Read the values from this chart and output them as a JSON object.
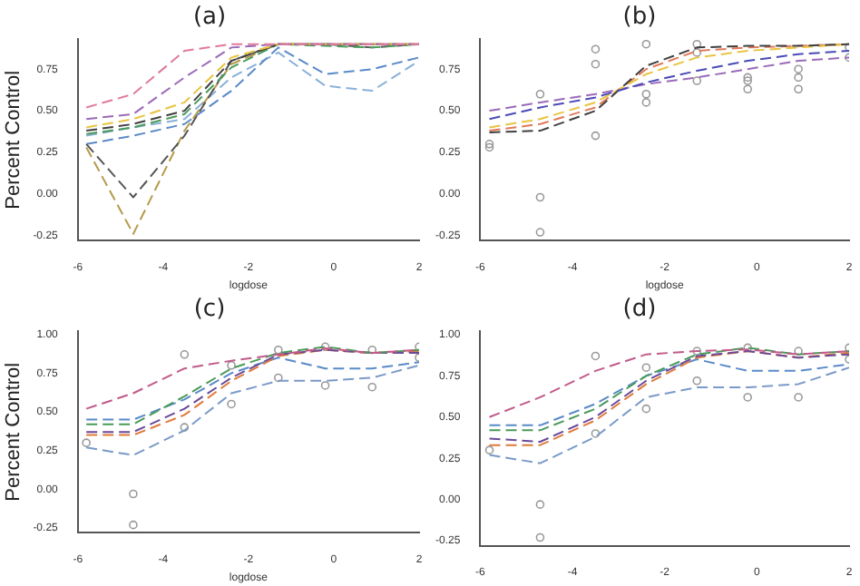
{
  "chart_data": [
    {
      "type": "line",
      "title": "(a)",
      "xlabel": "logdose",
      "ylabel": "Percent Control",
      "x": [
        -5.8,
        -4.7,
        -3.5,
        -2.4,
        -1.3,
        -0.2,
        0.9,
        2.0
      ],
      "xlim": [
        -6,
        2
      ],
      "xticks": [
        -6,
        -4,
        -2,
        0,
        2
      ],
      "ylim": [
        -0.28,
        0.93
      ],
      "yticks": [
        {
          "value": -0.25,
          "label": "-0.25"
        },
        {
          "value": 0,
          "label": "0.00"
        },
        {
          "value": 0.25,
          "label": "0.25"
        },
        {
          "value": 0.5,
          "label": "0.50"
        },
        {
          "value": 0.75,
          "label": "0.75"
        }
      ],
      "grid": false,
      "legend": false,
      "marker": "none",
      "line_style": "dashed",
      "series": [
        {
          "color": "#e07a9a",
          "values": [
            0.52,
            0.6,
            0.86,
            0.9,
            0.9,
            0.9,
            0.9,
            0.9
          ]
        },
        {
          "color": "#9a6ab8",
          "values": [
            0.45,
            0.48,
            0.7,
            0.88,
            0.9,
            0.9,
            0.9,
            0.9
          ]
        },
        {
          "color": "#e8c440",
          "values": [
            0.4,
            0.45,
            0.55,
            0.82,
            0.9,
            0.9,
            0.9,
            0.9
          ]
        },
        {
          "color": "#404040",
          "values": [
            0.38,
            0.42,
            0.5,
            0.8,
            0.9,
            0.9,
            0.9,
            0.9
          ]
        },
        {
          "color": "#4a9a5a",
          "values": [
            0.36,
            0.4,
            0.48,
            0.76,
            0.9,
            0.89,
            0.88,
            0.9
          ]
        },
        {
          "color": "#555555",
          "values": [
            0.3,
            -0.02,
            0.35,
            0.8,
            0.9,
            0.9,
            0.88,
            0.9
          ]
        },
        {
          "color": "#b59a4a",
          "values": [
            0.28,
            -0.24,
            0.38,
            0.78,
            0.9,
            0.9,
            0.9,
            0.9
          ]
        },
        {
          "color": "#5a8ac8",
          "values": [
            0.3,
            0.35,
            0.42,
            0.62,
            0.88,
            0.72,
            0.75,
            0.82
          ]
        },
        {
          "color": "#8ab0d8",
          "values": [
            0.35,
            0.4,
            0.45,
            0.7,
            0.85,
            0.65,
            0.62,
            0.8
          ]
        }
      ]
    },
    {
      "type": "line",
      "title": "(b)",
      "xlabel": "logdose",
      "x": [
        -5.8,
        -4.7,
        -3.5,
        -2.4,
        -1.3,
        -0.2,
        0.9,
        2.0
      ],
      "xlim": [
        -6,
        2
      ],
      "xticks": [
        -6,
        -4,
        -2,
        0,
        2
      ],
      "ylim": [
        -0.28,
        0.93
      ],
      "yticks": [
        {
          "value": -0.25,
          "label": "-0.25"
        },
        {
          "value": 0,
          "label": "0.00"
        },
        {
          "value": 0.25,
          "label": "0.25"
        },
        {
          "value": 0.5,
          "label": "0.50"
        },
        {
          "value": 0.75,
          "label": "0.75"
        }
      ],
      "grid": false,
      "legend": false,
      "marker": "none",
      "line_style": "dashed",
      "series": [
        {
          "color": "#4a4ab8",
          "values": [
            0.45,
            0.52,
            0.58,
            0.67,
            0.74,
            0.8,
            0.84,
            0.86
          ]
        },
        {
          "color": "#404040",
          "values": [
            0.37,
            0.38,
            0.5,
            0.77,
            0.88,
            0.89,
            0.89,
            0.9
          ]
        },
        {
          "color": "#e8c440",
          "values": [
            0.4,
            0.45,
            0.55,
            0.72,
            0.82,
            0.86,
            0.88,
            0.9
          ]
        },
        {
          "color": "#9a6ab8",
          "values": [
            0.5,
            0.55,
            0.6,
            0.66,
            0.7,
            0.75,
            0.8,
            0.82
          ]
        },
        {
          "color": "#e07a5a",
          "values": [
            0.38,
            0.42,
            0.52,
            0.75,
            0.86,
            0.88,
            0.89,
            0.9
          ]
        },
        {
          "type": "scatter",
          "marker": "circle",
          "color": "#999999",
          "values": [
            0.3,
            0.6,
            0.87,
            0.55,
            0.68,
            0.63,
            0.63,
            0.82
          ]
        },
        {
          "type": "scatter",
          "marker": "circle",
          "color": "#999999",
          "values": [
            0.28,
            -0.02,
            0.35,
            0.9,
            0.9,
            0.7,
            0.7,
            0.88
          ]
        },
        {
          "type": "scatter",
          "marker": "circle",
          "color": "#999999",
          "values": [
            null,
            -0.23,
            0.78,
            0.6,
            0.85,
            0.68,
            0.75,
            null
          ]
        }
      ]
    },
    {
      "type": "line",
      "title": "(c)",
      "xlabel": "logdose",
      "ylabel": "Percent Control",
      "x": [
        -5.8,
        -4.7,
        -3.5,
        -2.4,
        -1.3,
        -0.2,
        0.9,
        2.0
      ],
      "xlim": [
        -6,
        2
      ],
      "xticks": [
        -6,
        -4,
        -2,
        0,
        2
      ],
      "ylim": [
        -0.28,
        1.02
      ],
      "yticks": [
        {
          "value": -0.25,
          "label": "-0.25"
        },
        {
          "value": 0,
          "label": "0.00"
        },
        {
          "value": 0.25,
          "label": "0.25"
        },
        {
          "value": 0.5,
          "label": "0.50"
        },
        {
          "value": 0.75,
          "label": "0.75"
        },
        {
          "value": 1,
          "label": "1.00"
        }
      ],
      "grid": false,
      "legend": false,
      "marker": "none",
      "line_style": "dashed",
      "series": [
        {
          "color": "#c05a8a",
          "values": [
            0.52,
            0.62,
            0.78,
            0.83,
            0.87,
            0.91,
            0.88,
            0.9
          ]
        },
        {
          "color": "#4a9a5a",
          "values": [
            0.42,
            0.42,
            0.6,
            0.78,
            0.88,
            0.92,
            0.88,
            0.9
          ]
        },
        {
          "color": "#6a4a9a",
          "values": [
            0.37,
            0.37,
            0.52,
            0.72,
            0.87,
            0.9,
            0.88,
            0.88
          ]
        },
        {
          "color": "#e07a3a",
          "values": [
            0.35,
            0.35,
            0.48,
            0.7,
            0.86,
            0.9,
            0.88,
            0.89
          ]
        },
        {
          "color": "#5a8ac8",
          "values": [
            0.45,
            0.45,
            0.58,
            0.75,
            0.85,
            0.78,
            0.78,
            0.82
          ]
        },
        {
          "color": "#7a9ac8",
          "values": [
            0.27,
            0.22,
            0.38,
            0.62,
            0.7,
            0.7,
            0.72,
            0.8
          ]
        },
        {
          "type": "scatter",
          "marker": "circle",
          "color": "#999999",
          "values": [
            0.3,
            -0.03,
            0.87,
            0.55,
            0.72,
            0.67,
            0.66,
            0.85
          ]
        },
        {
          "type": "scatter",
          "marker": "circle",
          "color": "#999999",
          "values": [
            null,
            -0.23,
            0.4,
            0.8,
            0.9,
            0.92,
            0.9,
            0.92
          ]
        }
      ]
    },
    {
      "type": "line",
      "title": "(d)",
      "x": [
        -5.8,
        -4.7,
        -3.5,
        -2.4,
        -1.3,
        -0.2,
        0.9,
        2.0
      ],
      "xlim": [
        -6,
        2
      ],
      "xticks": [
        -6,
        -4,
        -2,
        0,
        2
      ],
      "ylim": [
        -0.28,
        1.02
      ],
      "yticks": [
        {
          "value": -0.25,
          "label": "-0.25"
        },
        {
          "value": 0,
          "label": "0.00"
        },
        {
          "value": 0.25,
          "label": "0.25"
        },
        {
          "value": 0.5,
          "label": "0.50"
        },
        {
          "value": 0.75,
          "label": "0.75"
        },
        {
          "value": 1,
          "label": "1.00"
        }
      ],
      "grid": false,
      "legend": false,
      "marker": "none",
      "line_style": "dashed",
      "series": [
        {
          "color": "#c05a8a",
          "values": [
            0.5,
            0.62,
            0.78,
            0.88,
            0.9,
            0.91,
            0.88,
            0.9
          ]
        },
        {
          "color": "#4a9a5a",
          "values": [
            0.42,
            0.42,
            0.55,
            0.75,
            0.88,
            0.92,
            0.88,
            0.9
          ]
        },
        {
          "color": "#6a4a9a",
          "values": [
            0.37,
            0.35,
            0.5,
            0.72,
            0.87,
            0.9,
            0.86,
            0.88
          ]
        },
        {
          "color": "#e07a3a",
          "values": [
            0.33,
            0.33,
            0.48,
            0.7,
            0.86,
            0.9,
            0.86,
            0.89
          ]
        },
        {
          "color": "#5a8ac8",
          "values": [
            0.45,
            0.45,
            0.58,
            0.75,
            0.85,
            0.78,
            0.78,
            0.82
          ]
        },
        {
          "color": "#7a9ac8",
          "values": [
            0.27,
            0.22,
            0.38,
            0.62,
            0.68,
            0.68,
            0.7,
            0.8
          ]
        },
        {
          "type": "scatter",
          "marker": "circle",
          "color": "#999999",
          "values": [
            0.3,
            -0.03,
            0.87,
            0.55,
            0.72,
            0.62,
            0.62,
            0.85
          ]
        },
        {
          "type": "scatter",
          "marker": "circle",
          "color": "#999999",
          "values": [
            null,
            -0.23,
            0.4,
            0.8,
            0.9,
            0.92,
            0.9,
            0.92
          ]
        }
      ]
    }
  ]
}
